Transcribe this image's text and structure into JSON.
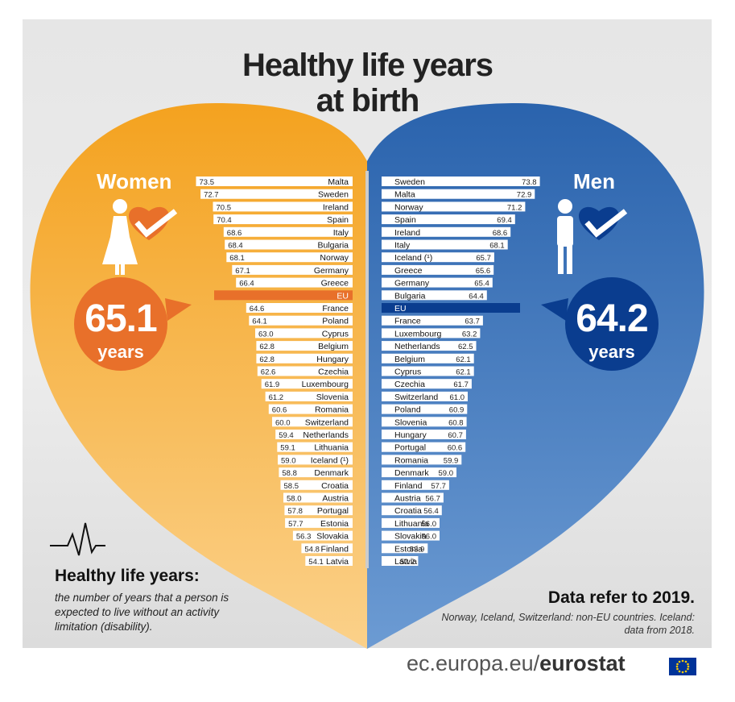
{
  "title_line1": "Healthy life years",
  "title_line2": "at birth",
  "women": {
    "label": "Women",
    "eu_value": "65.1",
    "unit": "years"
  },
  "men": {
    "label": "Men",
    "eu_value": "64.2",
    "unit": "years"
  },
  "eu_label": "EU",
  "definition": {
    "title": "Healthy life years:",
    "text": "the number of years that a person is expected to live without an activity limitation (disability)."
  },
  "data_reference": "Data refer to 2019.",
  "notes": "Norway, Iceland, Switzerland: non-EU countries. Iceland: data from 2018.",
  "source": {
    "domain": "ec.europa.eu/",
    "brand": "eurostat"
  },
  "colors": {
    "women": "#f5a623",
    "men": "#2f6db5",
    "women_eu": "#e8702a",
    "men_eu": "#0a3d8f"
  },
  "chart_data": [
    {
      "type": "bar",
      "series_name": "Women",
      "categories": [
        "Malta",
        "Sweden",
        "Ireland",
        "Spain",
        "Italy",
        "Bulgaria",
        "Norway",
        "Germany",
        "Greece",
        "EU",
        "France",
        "Poland",
        "Cyprus",
        "Belgium",
        "Hungary",
        "Czechia",
        "Luxembourg",
        "Slovenia",
        "Romania",
        "Switzerland",
        "Netherlands",
        "Lithuania",
        "Iceland (¹)",
        "Denmark",
        "Croatia",
        "Austria",
        "Portugal",
        "Estonia",
        "Slovakia",
        "Finland",
        "Latvia"
      ],
      "values": [
        73.5,
        72.7,
        70.5,
        70.4,
        68.6,
        68.4,
        68.1,
        67.1,
        66.4,
        65.1,
        64.6,
        64.1,
        63.0,
        62.8,
        62.8,
        62.6,
        61.9,
        61.2,
        60.6,
        60.0,
        59.4,
        59.1,
        59.0,
        58.8,
        58.5,
        58.0,
        57.8,
        57.7,
        56.3,
        54.8,
        54.1
      ],
      "labels": [
        "73.5",
        "72.7",
        "70.5",
        "70.4",
        "68.6",
        "68.4",
        "68.1",
        "67.1",
        "66.4",
        "",
        "64.6",
        "64.1",
        "63.0",
        "62.8",
        "62.8",
        "62.6",
        "61.9",
        "61.2",
        "60.6",
        "60.0",
        "59.4",
        "59.1",
        "59.0",
        "58.8",
        "58.5",
        "58.0",
        "57.8",
        "57.7",
        "56.3",
        "54.8",
        "54.1"
      ]
    },
    {
      "type": "bar",
      "series_name": "Men",
      "categories": [
        "Sweden",
        "Malta",
        "Norway",
        "Spain",
        "Ireland",
        "Italy",
        "Iceland (¹)",
        "Greece",
        "Germany",
        "Bulgaria",
        "EU",
        "France",
        "Luxembourg",
        "Netherlands",
        "Belgium",
        "Cyprus",
        "Czechia",
        "Switzerland",
        "Poland",
        "Slovenia",
        "Hungary",
        "Portugal",
        "Romania",
        "Denmark",
        "Finland",
        "Austria",
        "Croatia",
        "Lithuania",
        "Slovakia",
        "Estonia",
        "Latvia"
      ],
      "values": [
        73.8,
        72.9,
        71.2,
        69.4,
        68.6,
        68.1,
        65.7,
        65.6,
        65.4,
        64.4,
        64.2,
        63.7,
        63.2,
        62.5,
        62.1,
        62.1,
        61.7,
        61.0,
        60.9,
        60.8,
        60.7,
        60.6,
        59.9,
        59.0,
        57.7,
        56.7,
        56.4,
        56.0,
        56.0,
        53.9,
        52.2
      ],
      "labels": [
        "73.8",
        "72.9",
        "71.2",
        "69.4",
        "68.6",
        "68.1",
        "65.7",
        "65.6",
        "65.4",
        "64.4",
        "",
        "63.7",
        "63.2",
        "62.5",
        "62.1",
        "62.1",
        "61.7",
        "61.0",
        "60.9",
        "60.8",
        "60.7",
        "60.6",
        "59.9",
        "59.0",
        "57.7",
        "56.7",
        "56.4",
        "56.0",
        "56.0",
        "53.9",
        "52.2"
      ]
    }
  ]
}
